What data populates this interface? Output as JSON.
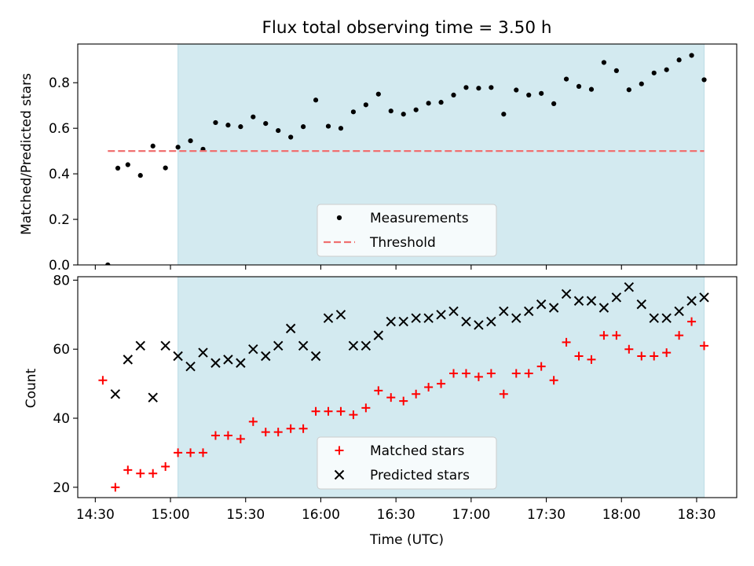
{
  "chart_data": [
    {
      "type": "scatter",
      "title": "Flux total observing time = 3.50 h",
      "xlabel": "",
      "ylabel": "Matched/Predicted stars",
      "xlim": [
        "14:23",
        "18:46"
      ],
      "ylim": [
        0,
        0.97
      ],
      "yticks": [
        "0.0",
        "0.2",
        "0.4",
        "0.6",
        "0.8"
      ],
      "shaded_interval": [
        "15:03",
        "18:33"
      ],
      "shade_color": "#d3eaf0",
      "legend_position": "lower-center",
      "series": [
        {
          "name": "Measurements",
          "marker": "dot",
          "color": "#000000",
          "points": [
            [
              "14:35",
              0.0
            ],
            [
              "14:39",
              0.425
            ],
            [
              "14:43",
              0.44
            ],
            [
              "14:48",
              0.393
            ],
            [
              "14:53",
              0.522
            ],
            [
              "14:58",
              0.426
            ],
            [
              "15:03",
              0.517
            ],
            [
              "15:08",
              0.545
            ],
            [
              "15:13",
              0.508
            ],
            [
              "15:18",
              0.625
            ],
            [
              "15:23",
              0.614
            ],
            [
              "15:28",
              0.607
            ],
            [
              "15:33",
              0.65
            ],
            [
              "15:38",
              0.621
            ],
            [
              "15:43",
              0.59
            ],
            [
              "15:48",
              0.561
            ],
            [
              "15:53",
              0.607
            ],
            [
              "15:58",
              0.724
            ],
            [
              "16:03",
              0.609
            ],
            [
              "16:08",
              0.6
            ],
            [
              "16:13",
              0.672
            ],
            [
              "16:18",
              0.703
            ],
            [
              "16:23",
              0.75
            ],
            [
              "16:28",
              0.676
            ],
            [
              "16:33",
              0.662
            ],
            [
              "16:38",
              0.681
            ],
            [
              "16:43",
              0.71
            ],
            [
              "16:48",
              0.714
            ],
            [
              "16:53",
              0.746
            ],
            [
              "16:58",
              0.779
            ],
            [
              "17:03",
              0.776
            ],
            [
              "17:08",
              0.779
            ],
            [
              "17:13",
              0.662
            ],
            [
              "17:18",
              0.768
            ],
            [
              "17:23",
              0.746
            ],
            [
              "17:28",
              0.753
            ],
            [
              "17:33",
              0.708
            ],
            [
              "17:38",
              0.816
            ],
            [
              "17:43",
              0.784
            ],
            [
              "17:48",
              0.771
            ],
            [
              "17:53",
              0.889
            ],
            [
              "17:58",
              0.853
            ],
            [
              "18:03",
              0.769
            ],
            [
              "18:08",
              0.795
            ],
            [
              "18:13",
              0.843
            ],
            [
              "18:18",
              0.857
            ],
            [
              "18:23",
              0.9
            ],
            [
              "18:28",
              0.92
            ],
            [
              "18:33",
              0.813
            ]
          ]
        },
        {
          "name": "Threshold",
          "marker": "dashed-line",
          "color": "#f07070",
          "points": [
            [
              "14:35",
              0.5
            ],
            [
              "18:33",
              0.5
            ]
          ]
        }
      ]
    },
    {
      "type": "scatter",
      "title": "",
      "xlabel": "Time (UTC)",
      "ylabel": "Count",
      "xlim": [
        "14:23",
        "18:46"
      ],
      "ylim": [
        17,
        81
      ],
      "yticks": [
        "20",
        "40",
        "60",
        "80"
      ],
      "xticks": [
        "14:30",
        "15:00",
        "15:30",
        "16:00",
        "16:30",
        "17:00",
        "17:30",
        "18:00",
        "18:30"
      ],
      "shaded_interval": [
        "15:03",
        "18:33"
      ],
      "shade_color": "#d3eaf0",
      "legend_position": "lower-center",
      "series": [
        {
          "name": "Matched stars",
          "marker": "plus",
          "color": "#ff0000",
          "points": [
            [
              "14:33",
              51
            ],
            [
              "14:38",
              20
            ],
            [
              "14:43",
              25
            ],
            [
              "14:48",
              24
            ],
            [
              "14:53",
              24
            ],
            [
              "14:58",
              26
            ],
            [
              "15:03",
              30
            ],
            [
              "15:08",
              30
            ],
            [
              "15:13",
              30
            ],
            [
              "15:18",
              35
            ],
            [
              "15:23",
              35
            ],
            [
              "15:28",
              34
            ],
            [
              "15:33",
              39
            ],
            [
              "15:38",
              36
            ],
            [
              "15:43",
              36
            ],
            [
              "15:48",
              37
            ],
            [
              "15:53",
              37
            ],
            [
              "15:58",
              42
            ],
            [
              "16:03",
              42
            ],
            [
              "16:08",
              42
            ],
            [
              "16:13",
              41
            ],
            [
              "16:18",
              43
            ],
            [
              "16:23",
              48
            ],
            [
              "16:28",
              46
            ],
            [
              "16:33",
              45
            ],
            [
              "16:38",
              47
            ],
            [
              "16:43",
              49
            ],
            [
              "16:48",
              50
            ],
            [
              "16:53",
              53
            ],
            [
              "16:58",
              53
            ],
            [
              "17:03",
              52
            ],
            [
              "17:08",
              53
            ],
            [
              "17:13",
              47
            ],
            [
              "17:18",
              53
            ],
            [
              "17:23",
              53
            ],
            [
              "17:28",
              55
            ],
            [
              "17:33",
              51
            ],
            [
              "17:38",
              62
            ],
            [
              "17:43",
              58
            ],
            [
              "17:48",
              57
            ],
            [
              "17:53",
              64
            ],
            [
              "17:58",
              64
            ],
            [
              "18:03",
              60
            ],
            [
              "18:08",
              58
            ],
            [
              "18:13",
              58
            ],
            [
              "18:18",
              59
            ],
            [
              "18:23",
              64
            ],
            [
              "18:28",
              68
            ],
            [
              "18:33",
              61
            ]
          ]
        },
        {
          "name": "Predicted stars",
          "marker": "x",
          "color": "#000000",
          "points": [
            [
              "14:38",
              47
            ],
            [
              "14:43",
              57
            ],
            [
              "14:48",
              61
            ],
            [
              "14:53",
              46
            ],
            [
              "14:58",
              61
            ],
            [
              "15:03",
              58
            ],
            [
              "15:08",
              55
            ],
            [
              "15:13",
              59
            ],
            [
              "15:18",
              56
            ],
            [
              "15:23",
              57
            ],
            [
              "15:28",
              56
            ],
            [
              "15:33",
              60
            ],
            [
              "15:38",
              58
            ],
            [
              "15:43",
              61
            ],
            [
              "15:48",
              66
            ],
            [
              "15:53",
              61
            ],
            [
              "15:58",
              58
            ],
            [
              "16:03",
              69
            ],
            [
              "16:08",
              70
            ],
            [
              "16:13",
              61
            ],
            [
              "16:18",
              61
            ],
            [
              "16:23",
              64
            ],
            [
              "16:28",
              68
            ],
            [
              "16:33",
              68
            ],
            [
              "16:38",
              69
            ],
            [
              "16:43",
              69
            ],
            [
              "16:48",
              70
            ],
            [
              "16:53",
              71
            ],
            [
              "16:58",
              68
            ],
            [
              "17:03",
              67
            ],
            [
              "17:08",
              68
            ],
            [
              "17:13",
              71
            ],
            [
              "17:18",
              69
            ],
            [
              "17:23",
              71
            ],
            [
              "17:28",
              73
            ],
            [
              "17:33",
              72
            ],
            [
              "17:38",
              76
            ],
            [
              "17:43",
              74
            ],
            [
              "17:48",
              74
            ],
            [
              "17:53",
              72
            ],
            [
              "17:58",
              75
            ],
            [
              "18:03",
              78
            ],
            [
              "18:08",
              73
            ],
            [
              "18:13",
              69
            ],
            [
              "18:18",
              69
            ],
            [
              "18:23",
              71
            ],
            [
              "18:28",
              74
            ],
            [
              "18:33",
              75
            ]
          ]
        }
      ]
    }
  ]
}
